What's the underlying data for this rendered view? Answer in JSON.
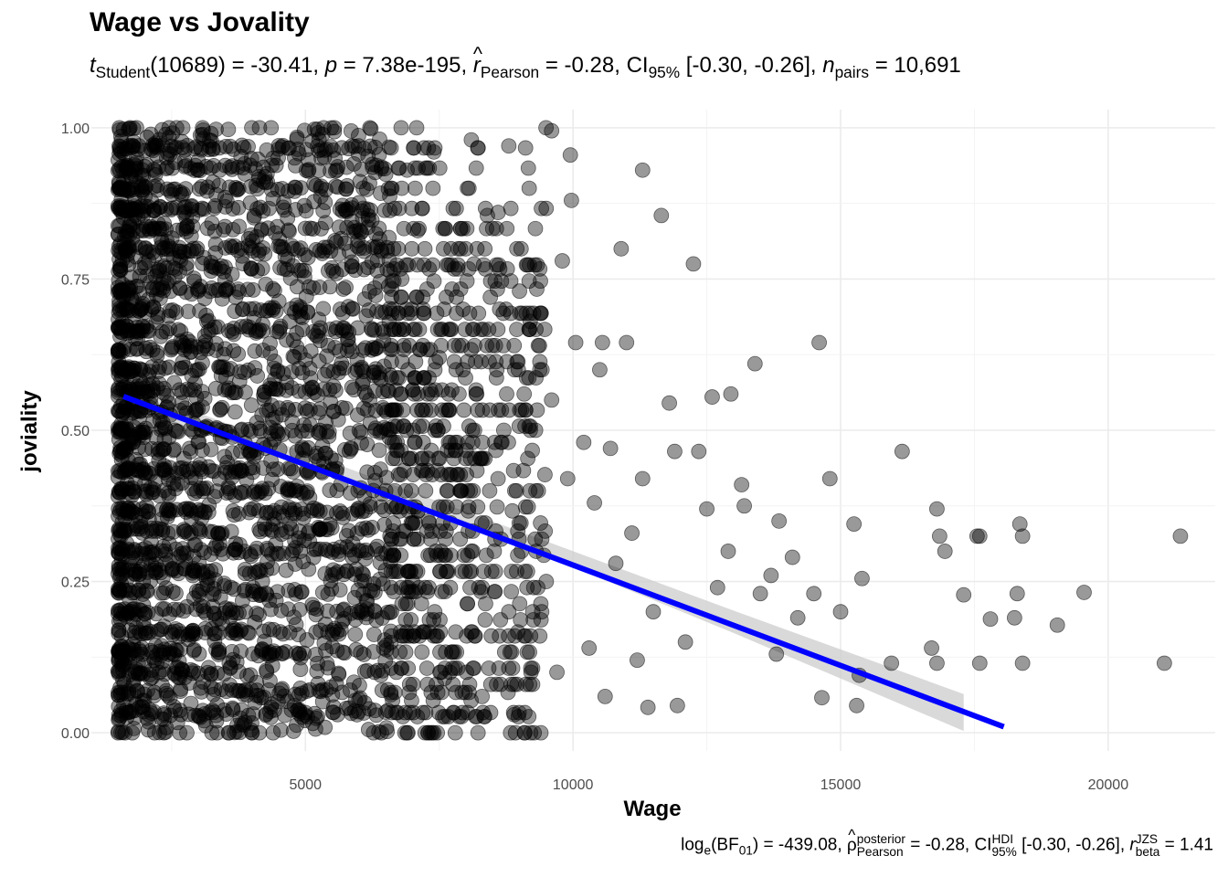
{
  "chart_data": {
    "type": "scatter",
    "title": "Wage vs Jovality",
    "subtitle": {
      "stat": "t",
      "stat_sub": "Student",
      "df": "(10689)",
      "stat_value": "= -30.41,",
      "p": "p",
      "p_value": "= 7.38e-195,",
      "r": "r",
      "r_sub": "Pearson",
      "r_value": "= -0.28,",
      "ci": "CI",
      "ci_sub": "95%",
      "ci_value": "[-0.30, -0.26],",
      "n": "n",
      "n_sub": "pairs",
      "n_value": "= 10,691"
    },
    "caption": {
      "log": "log",
      "log_sub": "e",
      "bf": "(BF",
      "bf_sub": "01",
      "bf_value": ") = -439.08,",
      "rho": "ρ",
      "rho_sup": "posterior",
      "rho_sub": "Pearson",
      "rho_value": "= -0.28,",
      "ci": "CI",
      "ci_sup": "HDI",
      "ci_sub": "95%",
      "ci_value": "[-0.30, -0.26],",
      "r": "r",
      "r_sup": "JZS",
      "r_sub": "beta",
      "r_value": "= 1.41"
    },
    "xlabel": "Wage",
    "ylabel": "joviality",
    "xlim": [
      1000,
      22000
    ],
    "ylim": [
      -0.03,
      1.03
    ],
    "x_ticks": [
      5000,
      10000,
      15000,
      20000
    ],
    "x_tick_labels": [
      "5000",
      "10000",
      "15000",
      "20000"
    ],
    "y_ticks": [
      0,
      0.25,
      0.5,
      0.75,
      1.0
    ],
    "y_tick_labels": [
      "0.00",
      "0.25",
      "0.50",
      "0.75",
      "1.00"
    ],
    "grid": true,
    "point_color": "#000000",
    "point_alpha": 0.4,
    "fit_line_color": "#0000ff",
    "ci_band_color": "#cccccc",
    "fit": {
      "x": [
        1600,
        18050
      ],
      "y": [
        0.556,
        0.01
      ]
    },
    "ci_band": {
      "x": [
        1600,
        5000,
        9000,
        13000,
        17300
      ],
      "lower": [
        0.537,
        0.441,
        0.31,
        0.165,
        0.003
      ],
      "upper": [
        0.575,
        0.463,
        0.333,
        0.202,
        0.064
      ]
    },
    "points": [
      {
        "x": 9600,
        "y": 0.995
      },
      {
        "x": 9950,
        "y": 0.955
      },
      {
        "x": 9970,
        "y": 0.88
      },
      {
        "x": 11300,
        "y": 0.93
      },
      {
        "x": 11650,
        "y": 0.855
      },
      {
        "x": 12250,
        "y": 0.775
      },
      {
        "x": 10050,
        "y": 0.645
      },
      {
        "x": 10550,
        "y": 0.645
      },
      {
        "x": 11000,
        "y": 0.645
      },
      {
        "x": 14600,
        "y": 0.645
      },
      {
        "x": 13400,
        "y": 0.61
      },
      {
        "x": 12950,
        "y": 0.56
      },
      {
        "x": 12600,
        "y": 0.555
      },
      {
        "x": 11800,
        "y": 0.545
      },
      {
        "x": 16150,
        "y": 0.465
      },
      {
        "x": 14800,
        "y": 0.42
      },
      {
        "x": 13150,
        "y": 0.41
      },
      {
        "x": 13850,
        "y": 0.35
      },
      {
        "x": 15250,
        "y": 0.345
      },
      {
        "x": 16800,
        "y": 0.37
      },
      {
        "x": 16850,
        "y": 0.325
      },
      {
        "x": 17550,
        "y": 0.325
      },
      {
        "x": 17600,
        "y": 0.325
      },
      {
        "x": 18350,
        "y": 0.345
      },
      {
        "x": 18400,
        "y": 0.325
      },
      {
        "x": 21350,
        "y": 0.325
      },
      {
        "x": 16950,
        "y": 0.3
      },
      {
        "x": 15400,
        "y": 0.255
      },
      {
        "x": 17300,
        "y": 0.228
      },
      {
        "x": 18300,
        "y": 0.23
      },
      {
        "x": 19550,
        "y": 0.232
      },
      {
        "x": 18250,
        "y": 0.19
      },
      {
        "x": 17800,
        "y": 0.188
      },
      {
        "x": 19050,
        "y": 0.178
      },
      {
        "x": 16700,
        "y": 0.14
      },
      {
        "x": 15950,
        "y": 0.115
      },
      {
        "x": 16800,
        "y": 0.115
      },
      {
        "x": 17600,
        "y": 0.115
      },
      {
        "x": 18400,
        "y": 0.115
      },
      {
        "x": 21050,
        "y": 0.115
      },
      {
        "x": 15350,
        "y": 0.095
      },
      {
        "x": 14650,
        "y": 0.058
      },
      {
        "x": 15300,
        "y": 0.045
      },
      {
        "x": 11950,
        "y": 0.045
      },
      {
        "x": 11400,
        "y": 0.042
      },
      {
        "x": 9100,
        "y": 0.0
      },
      {
        "x": 9400,
        "y": 0.0
      },
      {
        "x": 7400,
        "y": 0.0
      },
      {
        "x": 7800,
        "y": 0.0
      },
      {
        "x": 6900,
        "y": 0.0
      },
      {
        "x": 14500,
        "y": 0.23
      },
      {
        "x": 14200,
        "y": 0.19
      },
      {
        "x": 13800,
        "y": 0.13
      },
      {
        "x": 12900,
        "y": 0.3
      },
      {
        "x": 12500,
        "y": 0.37
      },
      {
        "x": 11900,
        "y": 0.465
      },
      {
        "x": 12350,
        "y": 0.465
      },
      {
        "x": 13500,
        "y": 0.23
      },
      {
        "x": 13200,
        "y": 0.375
      },
      {
        "x": 14100,
        "y": 0.29
      },
      {
        "x": 15000,
        "y": 0.2
      },
      {
        "x": 13700,
        "y": 0.26
      },
      {
        "x": 12700,
        "y": 0.24
      },
      {
        "x": 10900,
        "y": 0.8
      },
      {
        "x": 9800,
        "y": 0.78
      },
      {
        "x": 8400,
        "y": 0.855
      },
      {
        "x": 8600,
        "y": 0.86
      },
      {
        "x": 7900,
        "y": 0.8
      },
      {
        "x": 8150,
        "y": 0.775
      },
      {
        "x": 9000,
        "y": 0.73
      },
      {
        "x": 9200,
        "y": 0.68
      },
      {
        "x": 10500,
        "y": 0.6
      },
      {
        "x": 9600,
        "y": 0.55
      },
      {
        "x": 9300,
        "y": 0.5
      },
      {
        "x": 10200,
        "y": 0.48
      },
      {
        "x": 9900,
        "y": 0.42
      },
      {
        "x": 10700,
        "y": 0.47
      },
      {
        "x": 11300,
        "y": 0.42
      },
      {
        "x": 10400,
        "y": 0.38
      },
      {
        "x": 11100,
        "y": 0.33
      },
      {
        "x": 10800,
        "y": 0.28
      },
      {
        "x": 11500,
        "y": 0.2
      },
      {
        "x": 12100,
        "y": 0.15
      },
      {
        "x": 11200,
        "y": 0.12
      },
      {
        "x": 10300,
        "y": 0.14
      },
      {
        "x": 10600,
        "y": 0.06
      },
      {
        "x": 9700,
        "y": 0.1
      },
      {
        "x": 8900,
        "y": 0.03
      },
      {
        "x": 8300,
        "y": 0.06
      },
      {
        "x": 7600,
        "y": 0.09
      },
      {
        "x": 8800,
        "y": 0.2
      },
      {
        "x": 9500,
        "y": 0.25
      },
      {
        "x": 8100,
        "y": 0.3
      },
      {
        "x": 7300,
        "y": 0.35
      },
      {
        "x": 8600,
        "y": 0.42
      },
      {
        "x": 7800,
        "y": 0.48
      },
      {
        "x": 8200,
        "y": 0.56
      },
      {
        "x": 7500,
        "y": 0.62
      },
      {
        "x": 8700,
        "y": 0.64
      },
      {
        "x": 7200,
        "y": 0.7
      },
      {
        "x": 6800,
        "y": 0.75
      },
      {
        "x": 7100,
        "y": 0.83
      },
      {
        "x": 6600,
        "y": 0.9
      },
      {
        "x": 7400,
        "y": 0.96
      },
      {
        "x": 8800,
        "y": 0.97
      },
      {
        "x": 8100,
        "y": 0.98
      },
      {
        "x": 6900,
        "y": 0.93
      },
      {
        "x": 6500,
        "y": 0.4
      },
      {
        "x": 6300,
        "y": 0.2
      },
      {
        "x": 6700,
        "y": 0.1
      },
      {
        "x": 7000,
        "y": 0.25
      },
      {
        "x": 6200,
        "y": 0.55
      },
      {
        "x": 5800,
        "y": 0.65
      },
      {
        "x": 5600,
        "y": 0.03
      }
    ],
    "dense_region": {
      "x_min": 1500,
      "x_max": 6600,
      "density_falloff_x": 9500,
      "approx_n": 10691
    }
  }
}
